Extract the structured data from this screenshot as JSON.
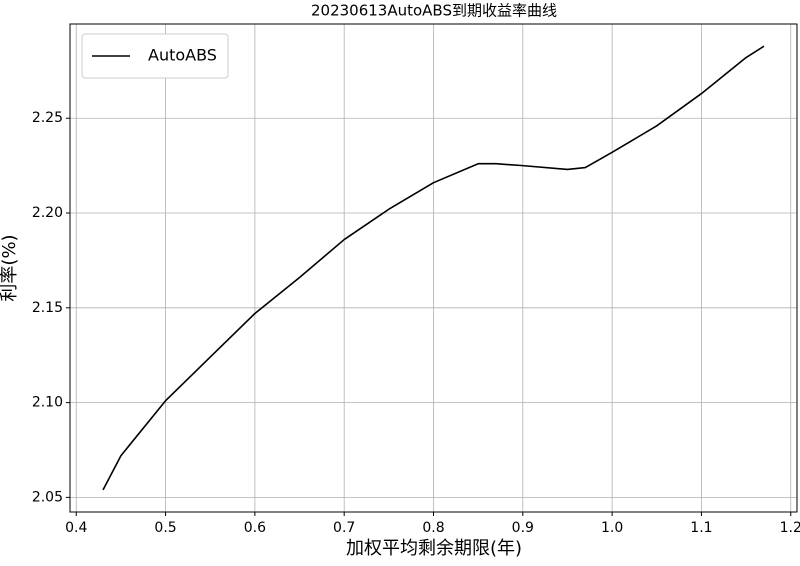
{
  "chart_data": {
    "type": "line",
    "title": "20230613AutoABS到期收益率曲线",
    "xlabel": "加权平均剩余期限(年)",
    "ylabel": "利率(%)",
    "x": [
      0.43,
      0.45,
      0.5,
      0.55,
      0.6,
      0.65,
      0.7,
      0.75,
      0.8,
      0.85,
      0.87,
      0.9,
      0.95,
      0.97,
      1.0,
      1.05,
      1.1,
      1.15,
      1.17
    ],
    "series": [
      {
        "name": "AutoABS",
        "color": "#000000",
        "values": [
          2.054,
          2.072,
          2.101,
          2.124,
          2.147,
          2.166,
          2.186,
          2.202,
          2.216,
          2.226,
          2.226,
          2.225,
          2.223,
          2.224,
          2.232,
          2.246,
          2.263,
          2.282,
          2.288
        ]
      }
    ],
    "xlim": [
      0.393,
      1.207
    ],
    "ylim": [
      2.0423,
      2.2997
    ],
    "xticks": [
      0.4,
      0.5,
      0.6,
      0.7,
      0.8,
      0.9,
      {
        "value": 1,
        "label": "1.0"
      },
      1.1,
      1.2
    ],
    "yticks": [
      2.05,
      {
        "value": 2.1,
        "label": "2.10"
      },
      2.15,
      {
        "value": 2.2,
        "label": "2.20"
      },
      2.25
    ],
    "grid": true,
    "legend": "upper-left"
  }
}
